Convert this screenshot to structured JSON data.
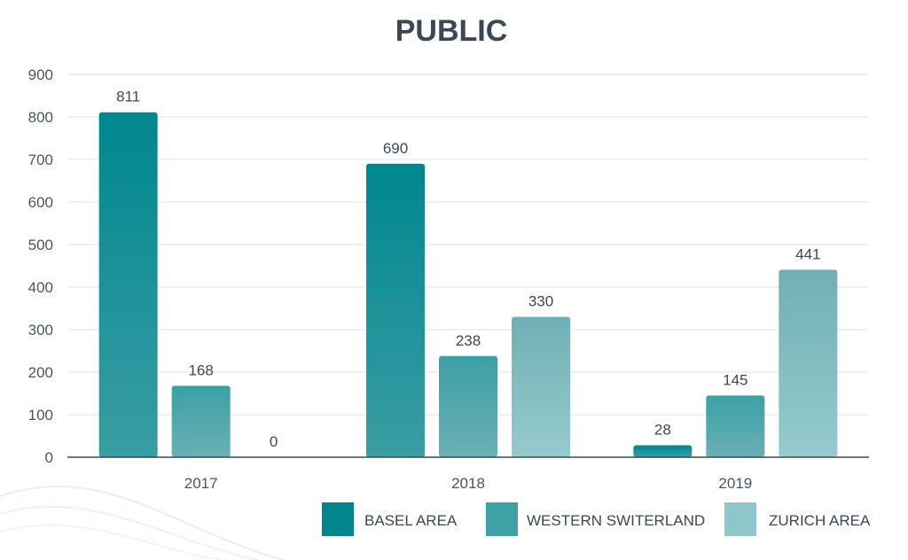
{
  "chart_data": {
    "type": "bar",
    "title": "PUBLIC",
    "categories": [
      "2017",
      "2018",
      "2019"
    ],
    "series": [
      {
        "name": "BASEL AREA",
        "values": [
          811,
          690,
          28
        ],
        "color": "#00868e"
      },
      {
        "name": "WESTERN SWITERLAND",
        "values": [
          168,
          238,
          145
        ],
        "color": "#3fa1a6"
      },
      {
        "name": "ZURICH AREA",
        "values": [
          0,
          330,
          441
        ],
        "color": "#8fc6c9"
      }
    ],
    "ylim": [
      0,
      900
    ],
    "yticks": [
      0,
      100,
      200,
      300,
      400,
      500,
      600,
      700,
      800,
      900
    ],
    "xlabel": "",
    "ylabel": "",
    "grid": true,
    "legend_position": "bottom-right"
  }
}
